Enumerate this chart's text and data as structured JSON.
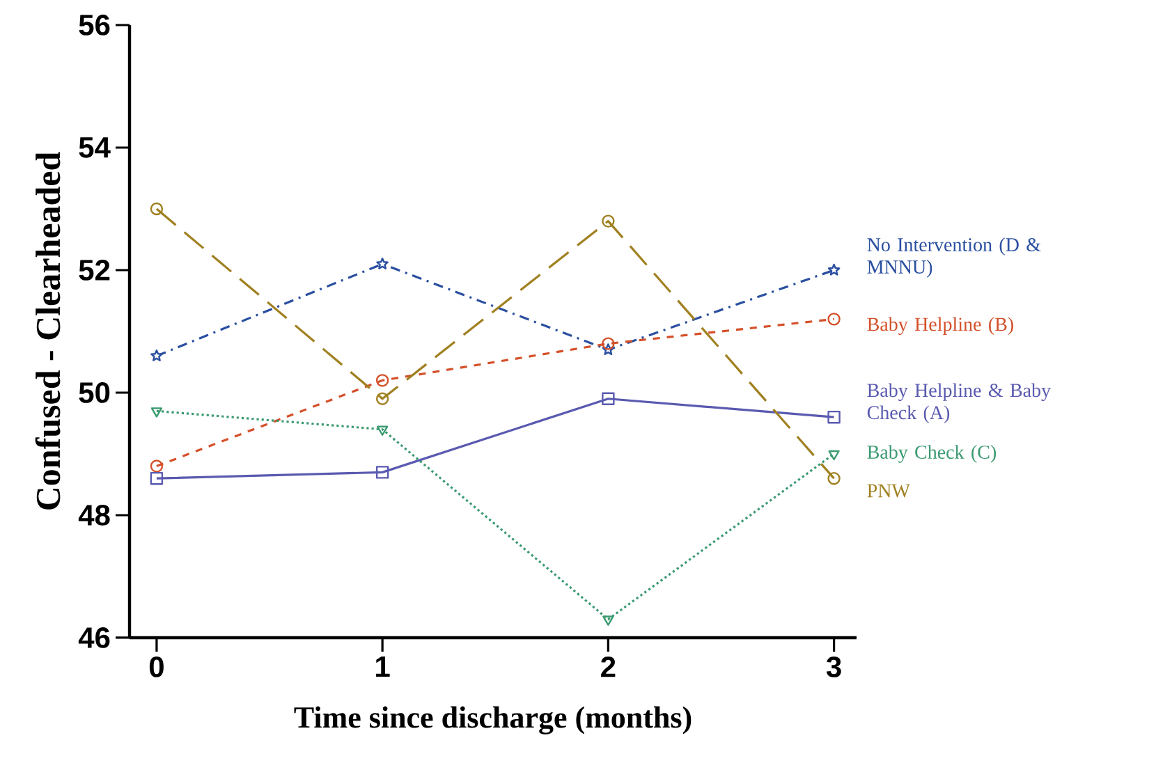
{
  "chart_data": {
    "type": "line",
    "xlabel": "Time since discharge (months)",
    "ylabel": "Confused - Clearheaded",
    "x": [
      0,
      1,
      2,
      3
    ],
    "xlim": [
      -0.12,
      3.1
    ],
    "xticks": [
      0,
      1,
      2,
      3
    ],
    "ylim": [
      46,
      56
    ],
    "yticks": [
      46,
      48,
      50,
      52,
      54,
      56
    ],
    "grid": false,
    "series": [
      {
        "name": "No Intervention (D & MNNU)",
        "color": "#2a4fa0",
        "marker": "star",
        "line_style": "dashdot",
        "values": [
          50.6,
          52.1,
          50.7,
          52.0
        ]
      },
      {
        "name": "Baby Helpline (B)",
        "color": "#d4502a",
        "marker": "circle",
        "line_style": "dashed",
        "values": [
          48.8,
          50.2,
          50.8,
          51.2
        ]
      },
      {
        "name": "Baby Helpline & Baby Check (A)",
        "color": "#5a5ab0",
        "marker": "square",
        "line_style": "solid",
        "values": [
          48.6,
          48.7,
          49.9,
          49.6
        ]
      },
      {
        "name": "Baby Check (C)",
        "color": "#3a9a70",
        "marker": "triangle",
        "line_style": "dotted",
        "values": [
          49.7,
          49.4,
          46.3,
          49.0
        ]
      },
      {
        "name": "PNW",
        "color": "#a08020",
        "marker": "circle",
        "line_style": "longdash",
        "values": [
          53.0,
          49.9,
          52.8,
          48.6
        ]
      }
    ]
  }
}
